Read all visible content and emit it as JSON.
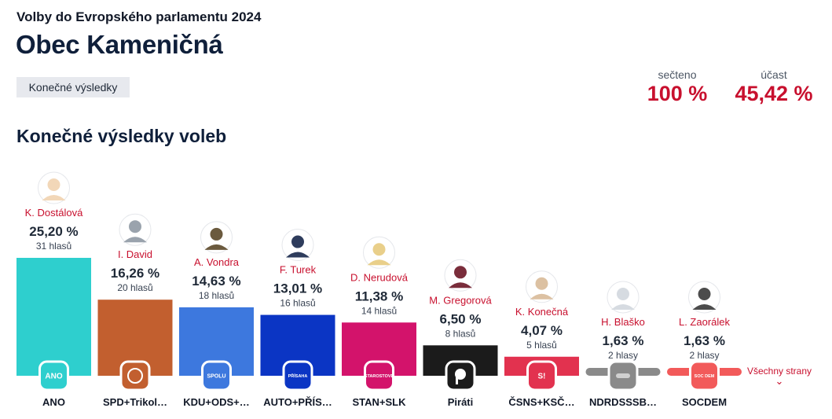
{
  "header": {
    "subtitle": "Volby do Evropského parlamentu 2024",
    "title": "Obec Kameničná",
    "badge": "Konečné výsledky"
  },
  "stats": {
    "counted_label": "sečteno",
    "counted_value": "100 %",
    "turnout_label": "účast",
    "turnout_value": "45,42 %"
  },
  "section_title": "Konečné výsledky voleb",
  "more_link": "Všechny strany",
  "chart_data": {
    "type": "bar",
    "title": "Konečné výsledky voleb",
    "ylim": [
      0,
      25.2
    ],
    "categories": [
      "ANO",
      "SPD+Trikol…",
      "KDU+ODS+…",
      "AUTO+PŘÍS…",
      "STAN+SLK",
      "Piráti",
      "ČSNS+KSČ…",
      "NDRDSSSB…",
      "SOCDEM"
    ],
    "values": [
      25.2,
      16.26,
      14.63,
      13.01,
      11.38,
      6.5,
      4.07,
      1.63,
      1.63
    ],
    "percent_labels": [
      "25,20 %",
      "16,26 %",
      "14,63 %",
      "13,01 %",
      "11,38 %",
      "6,50 %",
      "4,07 %",
      "1,63 %",
      "1,63 %"
    ],
    "vote_labels": [
      "31 hlasů",
      "20 hlasů",
      "18 hlasů",
      "16 hlasů",
      "14 hlasů",
      "8 hlasů",
      "5 hlasů",
      "2 hlasy",
      "2 hlasy"
    ],
    "candidates": [
      "K. Dostálová",
      "I. David",
      "A. Vondra",
      "F. Turek",
      "D. Nerudová",
      "M. Gregorová",
      "K. Konečná",
      "H. Blaško",
      "L. Zaorálek"
    ],
    "logo_texts": [
      "ANO",
      "",
      "SPOLU",
      "PŘÍSAHA",
      "STAROSTOVÉ",
      "",
      "S!",
      "",
      "SOC DEM"
    ],
    "colors": [
      "#2ecfce",
      "#c25f2f",
      "#3d78de",
      "#0b35c4",
      "#d3136b",
      "#1b1b1b",
      "#e2324f",
      "#8a8a8a",
      "#f25a5a"
    ],
    "photo_colors": [
      "#f2d7b8",
      "#9aa3ad",
      "#6b5a3e",
      "#2e3c5c",
      "#e9cf8a",
      "#7a2d3b",
      "#dcc1a2",
      "#d6dbe1",
      "#4c4c4c"
    ]
  }
}
